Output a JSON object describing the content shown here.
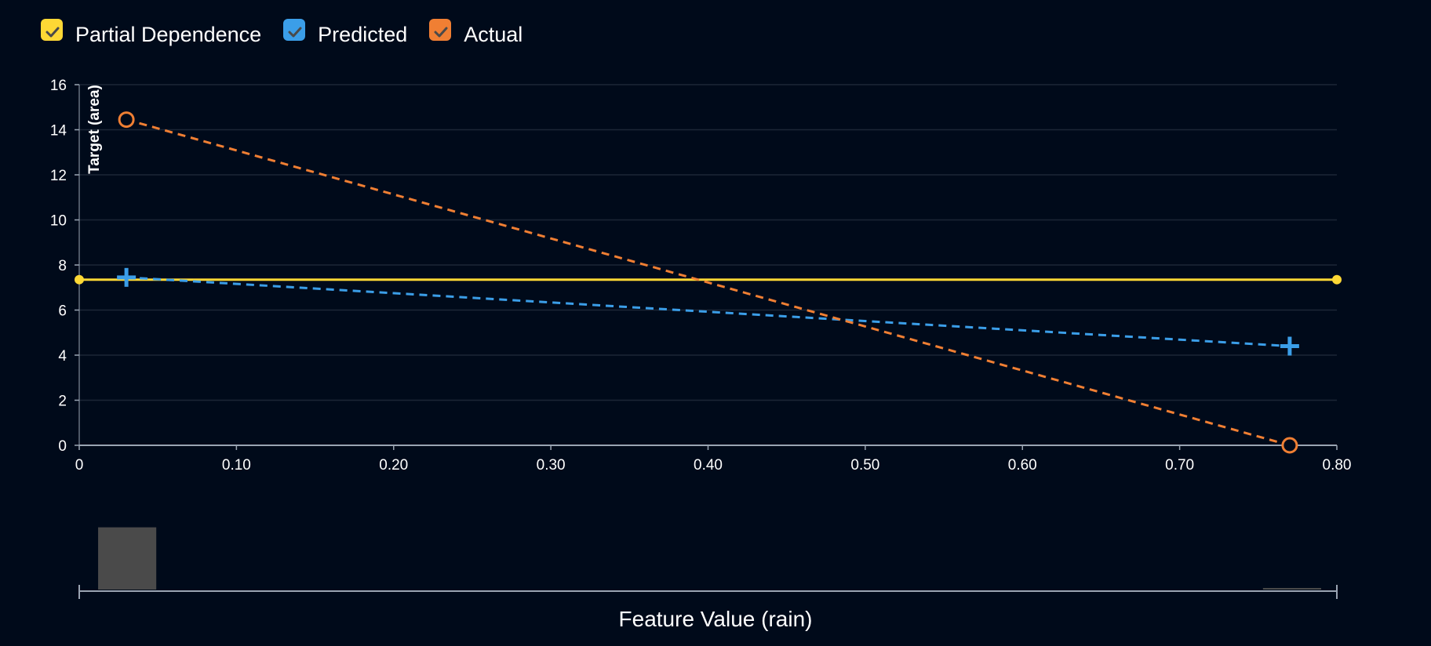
{
  "legend": {
    "items": [
      {
        "label": "Partial Dependence",
        "color": "#fdd835",
        "checked": true
      },
      {
        "label": "Predicted",
        "color": "#3b9ee8",
        "checked": true
      },
      {
        "label": "Actual",
        "color": "#f07f33",
        "checked": true
      }
    ]
  },
  "colors": {
    "background": "#000a1a",
    "grid": "#1c2636",
    "axis": "#9aa4b2",
    "histogram": "#4a4a4a"
  },
  "chart_data": {
    "type": "line",
    "title": "",
    "xlabel": "Feature Value (rain)",
    "ylabel": "Target (area)",
    "xlim": [
      0,
      0.8
    ],
    "ylim": [
      0,
      16
    ],
    "x_ticks": [
      0,
      0.1,
      0.2,
      0.3,
      0.4,
      0.5,
      0.6,
      0.7,
      0.8
    ],
    "x_tick_labels": [
      "0",
      "0.10",
      "0.20",
      "0.30",
      "0.40",
      "0.50",
      "0.60",
      "0.70",
      "0.80"
    ],
    "y_ticks": [
      0,
      2,
      4,
      6,
      8,
      10,
      12,
      14,
      16
    ],
    "y_tick_labels": [
      "0",
      "2",
      "4",
      "6",
      "8",
      "10",
      "12",
      "14",
      "16"
    ],
    "grid": true,
    "legend_position": "top-left",
    "series": [
      {
        "name": "Partial Dependence",
        "style": "solid",
        "marker": "dot",
        "color": "#fdd835",
        "x": [
          0,
          0.8
        ],
        "y": [
          7.35,
          7.35
        ]
      },
      {
        "name": "Predicted",
        "style": "dashed",
        "marker": "plus",
        "color": "#3b9ee8",
        "x": [
          0.03,
          0.77
        ],
        "y": [
          7.45,
          4.4
        ]
      },
      {
        "name": "Actual",
        "style": "dashed",
        "marker": "circle",
        "color": "#f07f33",
        "x": [
          0.03,
          0.77
        ],
        "y": [
          14.45,
          0
        ]
      }
    ],
    "histogram": {
      "bins": [
        {
          "x0": 0.012,
          "x1": 0.049,
          "count": 0.98
        },
        {
          "x0": 0.753,
          "x1": 0.79,
          "count": 0.02
        }
      ]
    }
  }
}
